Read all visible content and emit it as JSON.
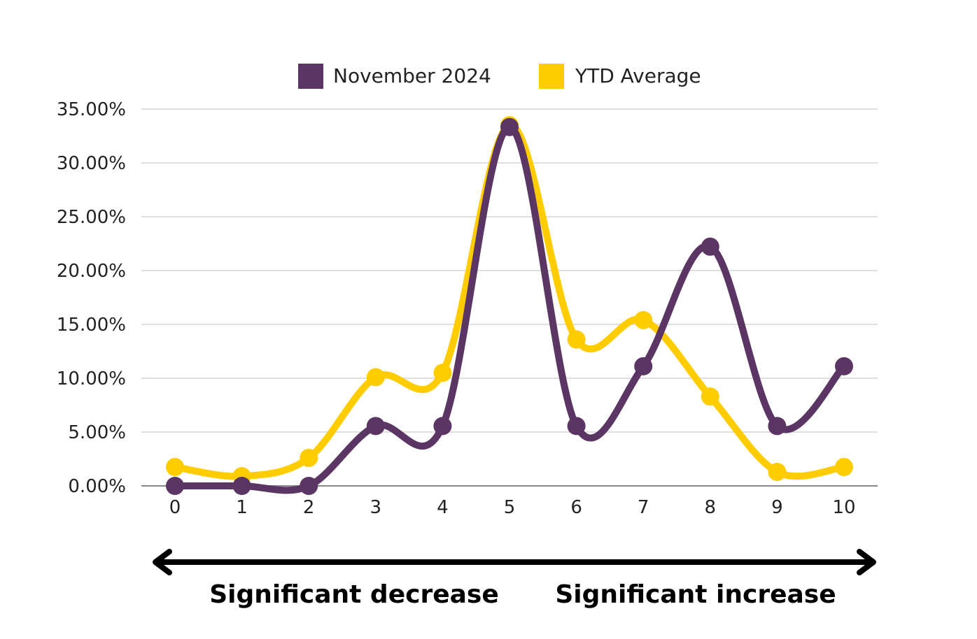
{
  "chart_data": {
    "type": "line",
    "x": [
      0,
      1,
      2,
      3,
      4,
      5,
      6,
      7,
      8,
      9,
      10
    ],
    "series": [
      {
        "name": "November 2024",
        "color": "#5b3665",
        "values": [
          0.0,
          0.0,
          0.0,
          5.56,
          5.56,
          33.33,
          5.56,
          11.11,
          22.22,
          5.56,
          11.11
        ]
      },
      {
        "name": "YTD Average",
        "color": "#ffcc00",
        "values": [
          1.75,
          0.9,
          2.6,
          10.1,
          10.5,
          33.5,
          13.6,
          15.4,
          8.3,
          1.3,
          1.75
        ]
      }
    ],
    "y_ticks": [
      "0.00%",
      "5.00%",
      "10.00%",
      "15.00%",
      "20.00%",
      "25.00%",
      "30.00%",
      "35.00%"
    ],
    "x_ticks": [
      "0",
      "1",
      "2",
      "3",
      "4",
      "5",
      "6",
      "7",
      "8",
      "9",
      "10"
    ],
    "ylim": [
      0,
      35
    ],
    "xlim": [
      0,
      10
    ],
    "grid": true,
    "smooth": true,
    "legend_position": "top-center",
    "scale_labels": {
      "left": "Significant decrease",
      "right": "Significant increase"
    }
  }
}
